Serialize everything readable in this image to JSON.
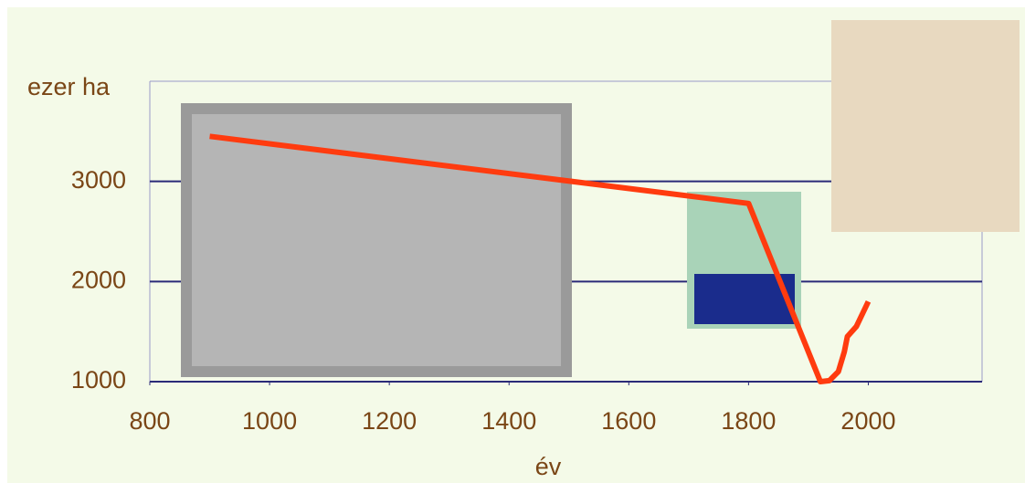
{
  "chart_data": {
    "type": "line",
    "y_label": "ezer ha",
    "x_label": "év",
    "x": [
      900,
      1800,
      1920,
      1935,
      1950,
      1960,
      1965,
      1980,
      2000
    ],
    "series": [
      {
        "color": "#ff3b0f",
        "values": [
          3450,
          2780,
          1000,
          1010,
          1100,
          1300,
          1450,
          1550,
          1800
        ]
      }
    ],
    "xlim": [
      800,
      2190
    ],
    "xticks": [
      800,
      1000,
      1200,
      1400,
      1600,
      1800,
      2000
    ],
    "ylim": [
      1000,
      4000
    ],
    "yticks": [
      1000,
      2000,
      3000
    ]
  }
}
